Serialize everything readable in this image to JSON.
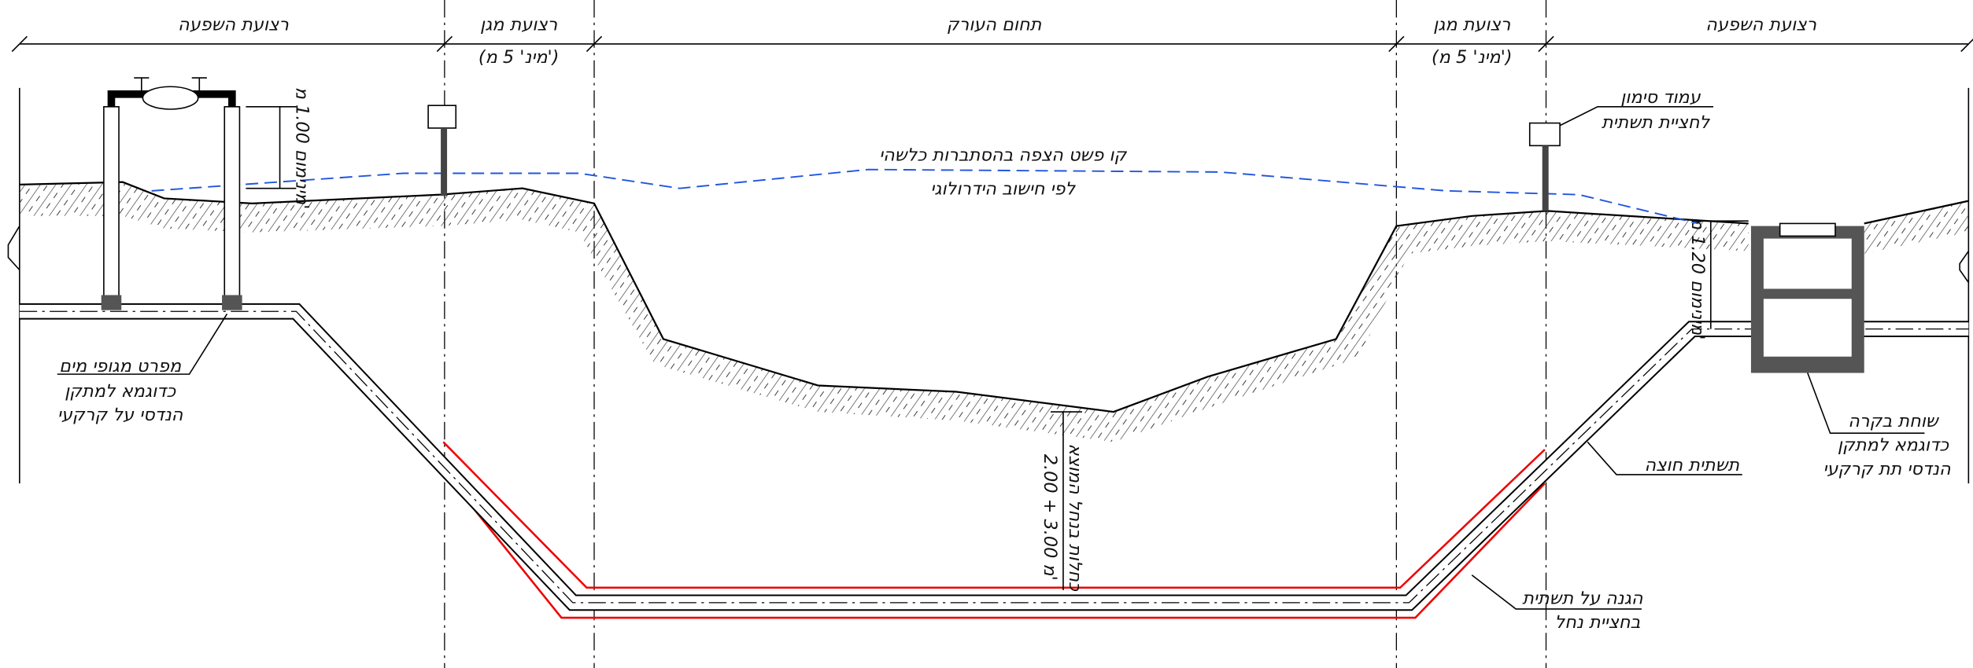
{
  "zones": [
    {
      "label": "רצועת השפעה"
    },
    {
      "label": "רצועת מגן",
      "note": "(מינ' 5 מ')"
    },
    {
      "label": "תחום העורק"
    },
    {
      "label": "רצועת מגן",
      "note": "(מינ' 5 מ')"
    },
    {
      "label": "רצועת השפעה"
    }
  ],
  "annotations": {
    "meter_depth": "מינימום 1.00 מ'",
    "marker_post": [
      "עמוד סימון",
      "לחציית תשתית"
    ],
    "flood_line": [
      "קו פשט הצפה בהסתברות כלשהי",
      "לפי חישוב הידרולוגי"
    ],
    "manhole_depth": "מינימום 1.20 מ'",
    "water_valves": [
      "מפרט מגופי מים",
      "כדוגמא למתקן",
      "הנדסי על קרקעי"
    ],
    "crossing_depth": [
      "2.00 + 3.00 מ'",
      "כחלות בנחל המוצא"
    ],
    "manhole": [
      "שוחת בקרה",
      "כדוגמא למתקן",
      "הנדסי תת קרקעי"
    ],
    "crossing_pipe": "תשתית חוצה",
    "protection": [
      "הגנה על תשתית",
      "בחציית נחל"
    ]
  }
}
